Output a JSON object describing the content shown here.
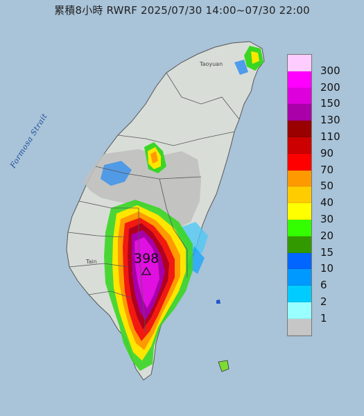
{
  "title": "累積8小時 RWRF 2025/07/30 14:00~07/30 22:00",
  "strait_label": "Formosa Strait",
  "place_labels": {
    "taoyuan": "Taoyuan",
    "tainan": "Tain"
  },
  "max_value_label": "398",
  "legend": {
    "colors": [
      "#ffccff",
      "#ff00ff",
      "#dd00dd",
      "#aa00aa",
      "#990000",
      "#cc0000",
      "#ff0000",
      "#ff9900",
      "#ffcc00",
      "#ffff00",
      "#33ff00",
      "#339900",
      "#0066ff",
      "#0099ff",
      "#00ccff",
      "#99ffff",
      "#c6c6c6"
    ],
    "labels": [
      "300",
      "200",
      "150",
      "130",
      "110",
      "90",
      "70",
      "50",
      "40",
      "30",
      "20",
      "15",
      "10",
      "6",
      "2",
      "1"
    ]
  },
  "colors": {
    "sea": "#a9c3d8",
    "land": "#d9ddd8",
    "rain_grey": "#c0c0c0"
  }
}
